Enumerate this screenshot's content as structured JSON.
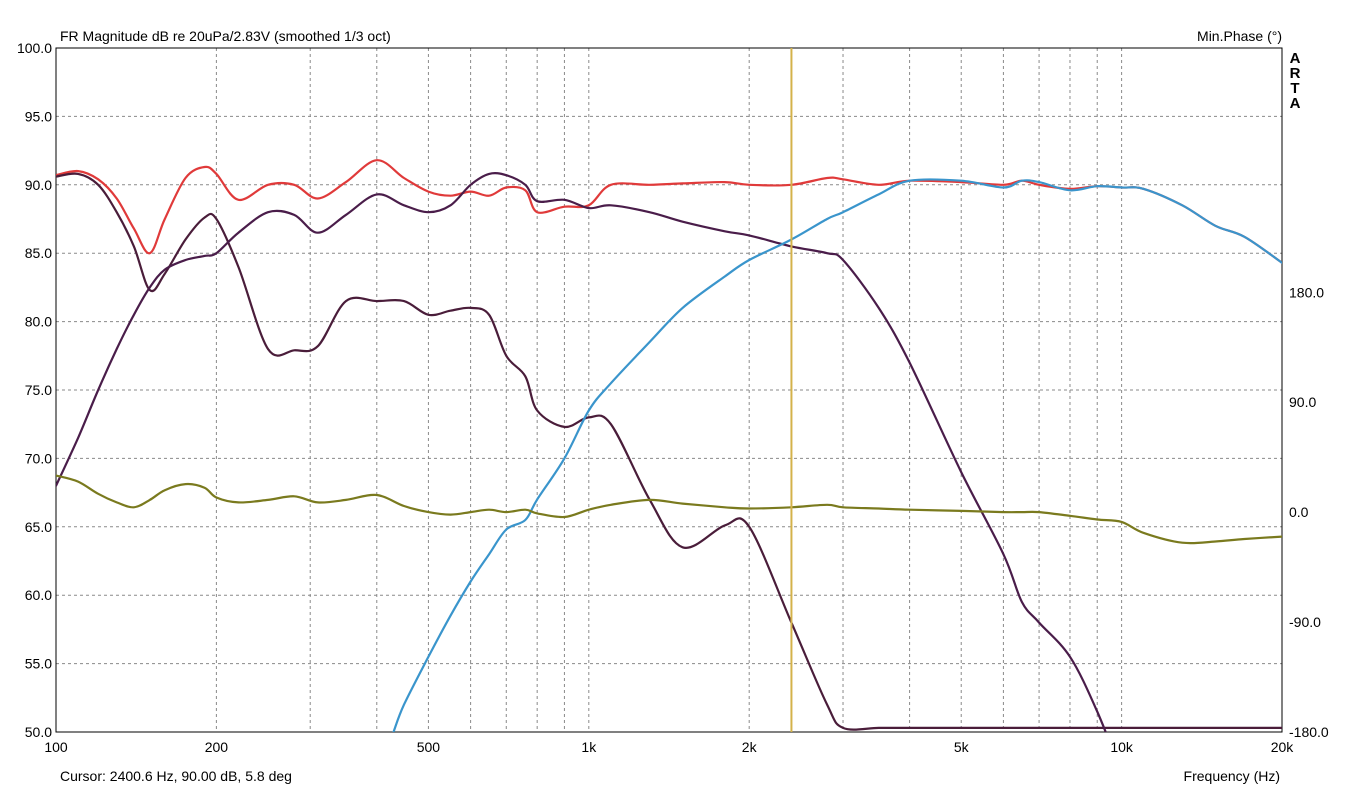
{
  "chart_data": {
    "type": "line",
    "title": "FR Magnitude dB re 20uPa/2.83V (smoothed 1/3 oct)",
    "right_axis_title": "Min.Phase (°)",
    "watermark": [
      "A",
      "R",
      "T",
      "A"
    ],
    "xlabel": "Frequency (Hz)",
    "x_scale": "log",
    "xlim": [
      100,
      20000
    ],
    "ylim": [
      50,
      100
    ],
    "y2lim": [
      -180,
      380
    ],
    "grid": true,
    "x_tick_labels": [
      {
        "value": 100,
        "label": "100"
      },
      {
        "value": 200,
        "label": "200"
      },
      {
        "value": 500,
        "label": "500"
      },
      {
        "value": 1000,
        "label": "1k"
      },
      {
        "value": 2000,
        "label": "2k"
      },
      {
        "value": 5000,
        "label": "5k"
      },
      {
        "value": 10000,
        "label": "10k"
      },
      {
        "value": 20000,
        "label": "20k"
      }
    ],
    "x_grid": [
      100,
      200,
      300,
      400,
      500,
      600,
      700,
      800,
      900,
      1000,
      2000,
      3000,
      4000,
      5000,
      6000,
      7000,
      8000,
      9000,
      10000,
      20000
    ],
    "y_tick_labels": [
      {
        "value": 100,
        "label": "100.0"
      },
      {
        "value": 95,
        "label": "95.0"
      },
      {
        "value": 90,
        "label": "90.0"
      },
      {
        "value": 85,
        "label": "85.0"
      },
      {
        "value": 80,
        "label": "80.0"
      },
      {
        "value": 75,
        "label": "75.0"
      },
      {
        "value": 70,
        "label": "70.0"
      },
      {
        "value": 65,
        "label": "65.0"
      },
      {
        "value": 60,
        "label": "60.0"
      },
      {
        "value": 55,
        "label": "55.0"
      },
      {
        "value": 50,
        "label": "50.0"
      }
    ],
    "y2_tick_labels": [
      {
        "value": 180,
        "label": "180.0"
      },
      {
        "value": 90,
        "label": "90.0"
      },
      {
        "value": 0,
        "label": "0.0"
      },
      {
        "value": -90,
        "label": "-90.0"
      },
      {
        "value": -180,
        "label": "-180.0"
      }
    ],
    "cursor": {
      "frequency": 2400.6,
      "color": "#d4b24a"
    },
    "cursor_readout": "Cursor: 2400.6 Hz, 90.00 dB, 5.8 deg",
    "series": [
      {
        "color": "#e03a3a",
        "axis": "left",
        "x": [
          100,
          110,
          120,
          130,
          140,
          150,
          160,
          175,
          190,
          200,
          220,
          250,
          280,
          310,
          350,
          400,
          450,
          500,
          550,
          600,
          650,
          700,
          760,
          800,
          900,
          1000,
          1100,
          1300,
          1500,
          1800,
          2000,
          2400,
          2800,
          3000,
          3500,
          4000,
          5000,
          6000,
          6500,
          7000,
          8000,
          9000,
          10000,
          11000,
          13000,
          15000,
          17000,
          20000
        ],
        "y": [
          90.7,
          91.0,
          90.4,
          89.0,
          86.8,
          85.0,
          87.5,
          90.5,
          91.3,
          90.8,
          88.9,
          90.0,
          90.0,
          89.0,
          90.2,
          91.8,
          90.5,
          89.5,
          89.2,
          89.5,
          89.2,
          89.8,
          89.6,
          88.0,
          88.4,
          88.5,
          90.0,
          90.0,
          90.1,
          90.2,
          90.0,
          90.0,
          90.5,
          90.4,
          90.0,
          90.3,
          90.2,
          90.0,
          90.3,
          90.0,
          89.7,
          89.9,
          89.8,
          89.7,
          88.5,
          87.0,
          86.2,
          84.3
        ]
      },
      {
        "color": "#4a1d3a",
        "axis": "left",
        "x": [
          100,
          110,
          120,
          130,
          140,
          150,
          160,
          175,
          190,
          200,
          220,
          250,
          280,
          310,
          350,
          400,
          450,
          500,
          550,
          600,
          650,
          700,
          760,
          800,
          900,
          1000,
          1100,
          1300,
          1500,
          1800,
          2000,
          2400,
          2800,
          3000,
          3500,
          4000,
          5000,
          6000,
          6500,
          7000,
          8000,
          9000,
          10000,
          11000,
          13000,
          15000,
          17000,
          20000
        ],
        "y": [
          90.6,
          90.8,
          90.0,
          88.0,
          85.5,
          82.3,
          83.5,
          86.0,
          87.6,
          87.5,
          84.0,
          78.0,
          77.9,
          78.2,
          81.5,
          81.5,
          81.5,
          80.5,
          80.8,
          81.0,
          80.5,
          77.5,
          76.0,
          73.5,
          72.3,
          73.0,
          72.5,
          67.0,
          63.5,
          65.1,
          65.0,
          58.0,
          52.0,
          50.3,
          50.3,
          50.3,
          50.3,
          50.3,
          50.3,
          50.3,
          50.3,
          50.3,
          50.3,
          50.3,
          50.3,
          50.3,
          50.3,
          50.3
        ]
      },
      {
        "color": "#4a1d4a",
        "axis": "left",
        "x": [
          100,
          110,
          120,
          130,
          140,
          150,
          160,
          175,
          190,
          200,
          220,
          250,
          280,
          310,
          350,
          400,
          450,
          500,
          550,
          600,
          650,
          700,
          760,
          800,
          900,
          1000,
          1100,
          1300,
          1500,
          1800,
          2000,
          2400,
          2800,
          3000,
          3500,
          4000,
          5000,
          6000,
          6500,
          7000,
          8000,
          9000,
          10000
        ],
        "y": [
          68.0,
          71.5,
          75.0,
          78.0,
          80.5,
          82.5,
          83.8,
          84.5,
          84.8,
          85.0,
          86.5,
          88.0,
          87.8,
          86.5,
          87.8,
          89.3,
          88.5,
          88.0,
          88.5,
          90.0,
          90.8,
          90.7,
          90.0,
          88.8,
          88.9,
          88.3,
          88.5,
          88.0,
          87.3,
          86.6,
          86.3,
          85.5,
          85.0,
          84.5,
          81.0,
          77.0,
          69.0,
          63.0,
          59.5,
          58.0,
          55.5,
          51.5,
          47.0
        ]
      },
      {
        "color": "#3a95cc",
        "axis": "left",
        "x": [
          430,
          450,
          500,
          550,
          600,
          650,
          700,
          760,
          800,
          900,
          1000,
          1100,
          1300,
          1500,
          1800,
          2000,
          2400,
          2800,
          3000,
          3500,
          4000,
          5000,
          6000,
          6500,
          7000,
          8000,
          9000,
          10000,
          11000,
          13000,
          15000,
          17000,
          20000
        ],
        "y": [
          50.0,
          52.0,
          55.5,
          58.5,
          61.0,
          63.0,
          64.8,
          65.5,
          67.0,
          70.0,
          73.5,
          75.5,
          78.5,
          81.0,
          83.3,
          84.5,
          86.0,
          87.5,
          88.0,
          89.3,
          90.3,
          90.3,
          89.8,
          90.3,
          90.2,
          89.6,
          89.9,
          89.8,
          89.7,
          88.5,
          87.0,
          86.2,
          84.3
        ]
      },
      {
        "color": "#7a7a1e",
        "axis": "right",
        "x": [
          100,
          110,
          120,
          130,
          140,
          150,
          160,
          175,
          190,
          200,
          220,
          250,
          280,
          310,
          350,
          400,
          450,
          500,
          550,
          600,
          650,
          700,
          760,
          800,
          900,
          1000,
          1100,
          1300,
          1500,
          1800,
          2000,
          2400,
          2800,
          3000,
          3500,
          4000,
          5000,
          6000,
          6500,
          7000,
          8000,
          9000,
          10000,
          11000,
          13000,
          15000,
          17000,
          20000
        ],
        "y": [
          30,
          25,
          15,
          8,
          4,
          10,
          18,
          23,
          20,
          12,
          8,
          10,
          13,
          8,
          10,
          14,
          5,
          0,
          -2,
          0,
          2,
          0,
          2,
          -1,
          -4,
          2,
          6,
          10,
          7,
          4,
          3,
          4,
          6,
          4,
          3,
          2,
          1,
          0,
          0,
          0,
          -3,
          -6,
          -8,
          -17,
          -25,
          -24,
          -22,
          -20
        ]
      }
    ]
  }
}
